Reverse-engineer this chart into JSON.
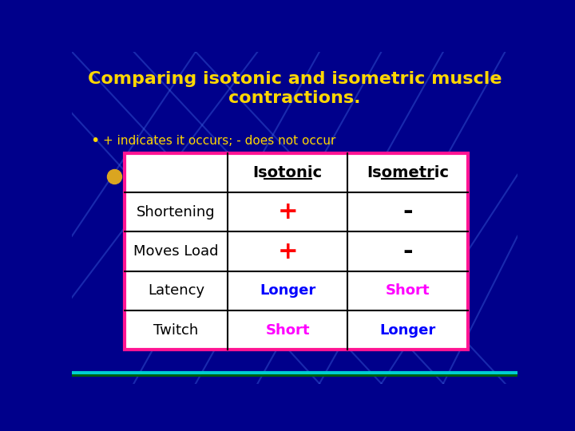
{
  "title": "Comparing isotonic and isometric muscle\ncontractions.",
  "subtitle": "+ indicates it occurs; - does not occur",
  "bg_color": "#00008B",
  "table_border_color": "#FF1493",
  "title_color": "#FFD700",
  "subtitle_color": "#FFD700",
  "headers": [
    "",
    "Isotonic",
    "Isometric"
  ],
  "rows": [
    [
      "Shortening",
      "+",
      "-"
    ],
    [
      "Moves Load",
      "+",
      "-"
    ],
    [
      "Latency",
      "Longer",
      "Short"
    ],
    [
      "Twitch",
      "Short",
      "Longer"
    ]
  ],
  "cell_colors": {
    "header_isotonic": "#000000",
    "header_isometric": "#000000",
    "row0_col1": "#FF0000",
    "row0_col2": "#000000",
    "row1_col1": "#FF0000",
    "row1_col2": "#000000",
    "row2_col1": "#0000FF",
    "row2_col2": "#FF00FF",
    "row3_col1": "#FF00FF",
    "row3_col2": "#0000FF"
  },
  "table_bg": "#FFFFFF",
  "row_label_color": "#000000",
  "line_color": "#4169E1",
  "line_alpha": 0.4,
  "line_width": 1.5,
  "bottom_bar_color1": "#00CED1",
  "bottom_bar_color2": "#006400",
  "bullet_color": "#DAA520"
}
